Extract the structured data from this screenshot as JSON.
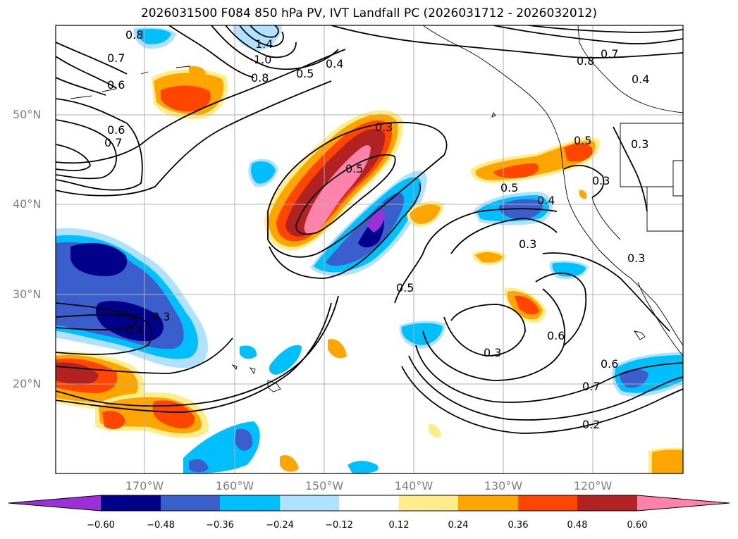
{
  "title": "2026031500 F084 850 hPa PV, IVT Landfall PC (2026031712 - 2026032012)",
  "map": {
    "lat_labels": [
      "50°N",
      "40°N",
      "30°N",
      "20°N"
    ],
    "lon_labels": [
      "170°W",
      "160°W",
      "150°W",
      "140°W",
      "130°W",
      "120°W"
    ],
    "contour_labels": [
      "0.8",
      "0.7",
      "0.6",
      "0.6",
      "0.7",
      "0.8",
      "1.0",
      "1.4",
      "0.5",
      "0.4",
      "0.3",
      "0.5",
      "0.5",
      "0.4",
      "0.3",
      "0.5",
      "0.3",
      "0.3",
      "0.5",
      "0.6",
      "0.3",
      "0.3",
      "0.4",
      "0.6",
      "0.7",
      "0.2",
      "0.7",
      "0.8",
      "0.4",
      "0.3"
    ],
    "colors": {
      "violet": "#9b30d9",
      "navy": "#00008b",
      "royal_blue": "#3a5fcd",
      "deep_sky": "#00bfff",
      "light_blue": "#b0e2ff",
      "light_yellow": "#ffed8b",
      "orange": "#ffa500",
      "orange_red": "#ff4500",
      "firebrick": "#b22222",
      "pink": "#ff82ab"
    }
  },
  "colorbar": {
    "ticks": [
      "−0.60",
      "−0.48",
      "−0.36",
      "−0.24",
      "−0.12",
      "0.12",
      "0.24",
      "0.36",
      "0.48",
      "0.60"
    ]
  }
}
